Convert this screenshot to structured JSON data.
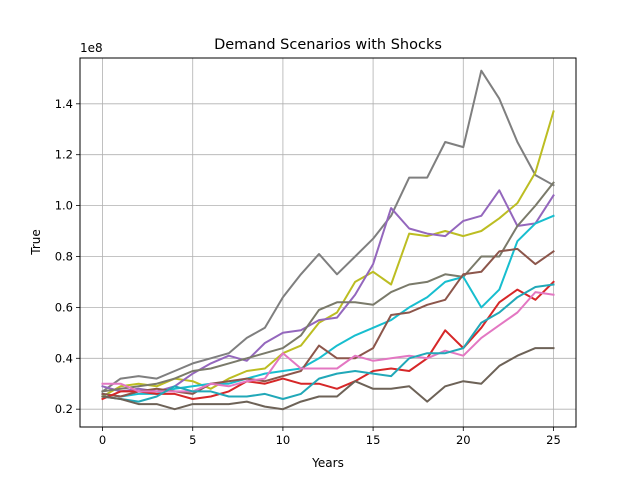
{
  "chart_data": {
    "type": "line",
    "title": "Demand Scenarios with Shocks",
    "xlabel": "Years",
    "ylabel": "True",
    "offset_label": "1e8",
    "xlim": [
      -1.25,
      26.25
    ],
    "ylim": [
      0.13,
      1.58
    ],
    "grid": true,
    "x_ticks": [
      0,
      5,
      10,
      15,
      20,
      25
    ],
    "x_tick_labels": [
      "0",
      "5",
      "10",
      "15",
      "20",
      "25"
    ],
    "y_ticks": [
      0.2,
      0.4,
      0.6,
      0.8,
      1.0,
      1.2,
      1.4
    ],
    "y_tick_labels": [
      "0.2",
      "0.4",
      "0.6",
      "0.8",
      "1.0",
      "1.2",
      "1.4"
    ],
    "x": [
      0,
      1,
      2,
      3,
      4,
      5,
      6,
      7,
      8,
      9,
      10,
      11,
      12,
      13,
      14,
      15,
      16,
      17,
      18,
      19,
      20,
      21,
      22,
      23,
      24,
      25
    ],
    "series": [
      {
        "color": "#7f7f7f",
        "values": [
          0.27,
          0.32,
          0.33,
          0.32,
          0.35,
          0.38,
          0.4,
          0.42,
          0.48,
          0.52,
          0.64,
          0.73,
          0.81,
          0.73,
          0.8,
          0.87,
          0.96,
          1.11,
          1.11,
          1.25,
          1.23,
          1.53,
          1.42,
          1.25,
          1.12,
          1.08
        ]
      },
      {
        "color": "#bcbd22",
        "values": [
          0.25,
          0.29,
          0.3,
          0.29,
          0.32,
          0.31,
          0.28,
          0.32,
          0.35,
          0.36,
          0.42,
          0.45,
          0.54,
          0.58,
          0.7,
          0.74,
          0.69,
          0.89,
          0.88,
          0.9,
          0.88,
          0.9,
          0.95,
          1.01,
          1.13,
          1.37
        ]
      },
      {
        "color": "#9467bd",
        "values": [
          0.29,
          0.27,
          0.28,
          0.27,
          0.29,
          0.34,
          0.38,
          0.41,
          0.39,
          0.46,
          0.5,
          0.51,
          0.55,
          0.56,
          0.65,
          0.77,
          0.99,
          0.91,
          0.89,
          0.88,
          0.94,
          0.96,
          1.06,
          0.92,
          0.93,
          1.04
        ]
      },
      {
        "color": "#7a7a6a",
        "values": [
          0.27,
          0.28,
          0.29,
          0.3,
          0.32,
          0.35,
          0.36,
          0.38,
          0.4,
          0.42,
          0.44,
          0.49,
          0.59,
          0.62,
          0.62,
          0.61,
          0.66,
          0.69,
          0.7,
          0.73,
          0.72,
          0.8,
          0.8,
          0.92,
          1.0,
          1.09
        ]
      },
      {
        "color": "#17becf",
        "values": [
          0.26,
          0.25,
          0.26,
          0.26,
          0.28,
          0.29,
          0.3,
          0.3,
          0.32,
          0.34,
          0.35,
          0.36,
          0.4,
          0.45,
          0.49,
          0.52,
          0.55,
          0.6,
          0.64,
          0.7,
          0.72,
          0.6,
          0.67,
          0.86,
          0.93,
          0.96
        ]
      },
      {
        "color": "#8c564b",
        "values": [
          0.26,
          0.25,
          0.27,
          0.28,
          0.27,
          0.26,
          0.3,
          0.31,
          0.32,
          0.31,
          0.33,
          0.35,
          0.45,
          0.4,
          0.4,
          0.44,
          0.57,
          0.58,
          0.61,
          0.63,
          0.73,
          0.74,
          0.82,
          0.83,
          0.77,
          0.82
        ]
      },
      {
        "color": "#d62728",
        "values": [
          0.24,
          0.27,
          0.27,
          0.26,
          0.26,
          0.24,
          0.25,
          0.27,
          0.31,
          0.3,
          0.32,
          0.3,
          0.3,
          0.28,
          0.31,
          0.35,
          0.36,
          0.35,
          0.4,
          0.51,
          0.44,
          0.52,
          0.62,
          0.67,
          0.63,
          0.7
        ]
      },
      {
        "color": "#e377c2",
        "values": [
          0.3,
          0.3,
          0.27,
          0.27,
          0.27,
          0.27,
          0.3,
          0.29,
          0.31,
          0.32,
          0.42,
          0.36,
          0.36,
          0.36,
          0.41,
          0.39,
          0.4,
          0.41,
          0.4,
          0.43,
          0.41,
          0.48,
          0.53,
          0.58,
          0.66,
          0.65
        ]
      },
      {
        "color": "#21a8b8",
        "values": [
          0.25,
          0.24,
          0.23,
          0.25,
          0.29,
          0.27,
          0.27,
          0.25,
          0.25,
          0.26,
          0.24,
          0.26,
          0.32,
          0.34,
          0.35,
          0.34,
          0.33,
          0.4,
          0.42,
          0.42,
          0.44,
          0.54,
          0.58,
          0.64,
          0.68,
          0.69
        ]
      },
      {
        "color": "#6d6257",
        "values": [
          0.25,
          0.24,
          0.22,
          0.22,
          0.2,
          0.22,
          0.22,
          0.22,
          0.23,
          0.21,
          0.2,
          0.23,
          0.25,
          0.25,
          0.31,
          0.28,
          0.28,
          0.29,
          0.23,
          0.29,
          0.31,
          0.3,
          0.37,
          0.41,
          0.44,
          0.44
        ]
      }
    ]
  }
}
